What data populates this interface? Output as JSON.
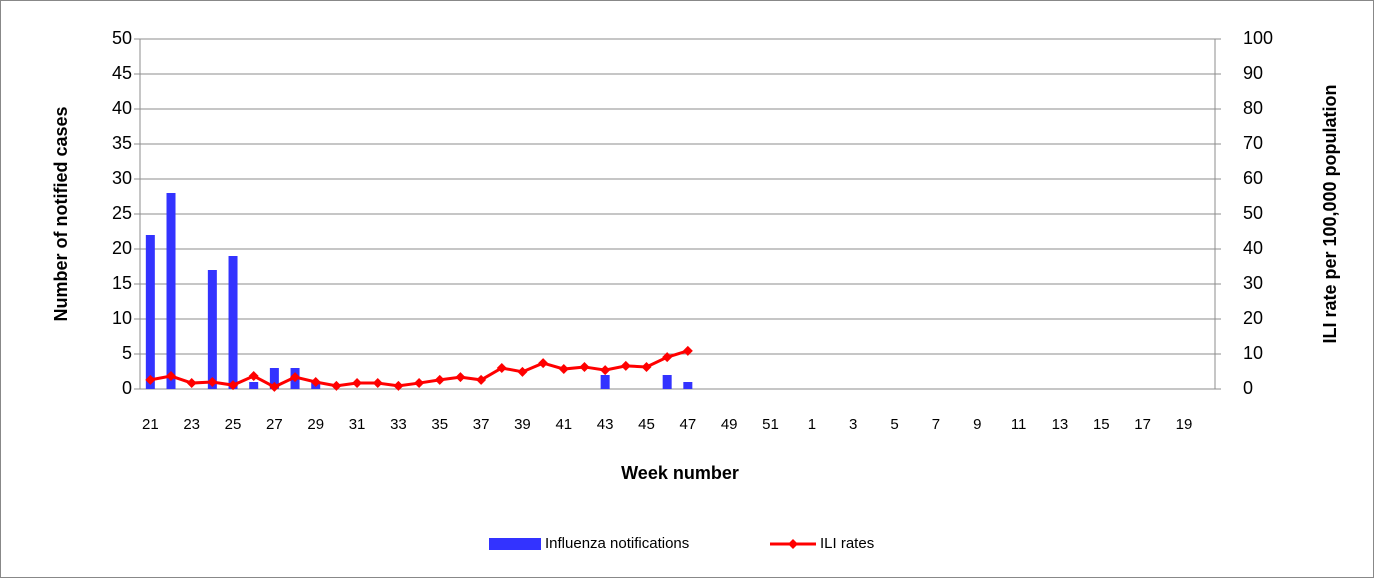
{
  "chart_data": {
    "type": "bar-line",
    "x_label": "Week number",
    "y_label": "Number of notified cases",
    "y2_label": "ILI rate per 100,000 population",
    "categories": [
      "21",
      null,
      "23",
      null,
      "25",
      null,
      "27",
      null,
      "29",
      null,
      "31",
      null,
      "33",
      null,
      "35",
      null,
      "37",
      null,
      "39",
      null,
      "41",
      null,
      "43",
      null,
      "45",
      null,
      "47",
      null,
      "49",
      null,
      "51",
      null,
      "1",
      null,
      "3",
      null,
      "5",
      null,
      "7",
      null,
      "9",
      null,
      "11",
      null,
      "13",
      null,
      "15",
      null,
      "17",
      null,
      "19",
      null
    ],
    "series": [
      {
        "name": "Influenza notifications",
        "type": "bar",
        "color": "#3333ff",
        "values": [
          22,
          28,
          0,
          17,
          19,
          1,
          3,
          3,
          1,
          0,
          0,
          0,
          0,
          0,
          0,
          0,
          0,
          0,
          0,
          0,
          0,
          0,
          2,
          0,
          0,
          2,
          1,
          null,
          null,
          null,
          null,
          null,
          null,
          null,
          null,
          null,
          null,
          null,
          null,
          null,
          null,
          null,
          null,
          null,
          null,
          null,
          null,
          null,
          null,
          null,
          null,
          null
        ]
      },
      {
        "name": "ILI rates",
        "type": "line",
        "axis": "y2",
        "color": "#ff0000",
        "values": [
          2.6,
          3.7,
          1.7,
          2,
          1.1,
          3.7,
          0.6,
          3.4,
          2,
          0.9,
          1.7,
          1.7,
          0.9,
          1.7,
          2.6,
          3.4,
          2.6,
          6,
          4.9,
          7.4,
          5.7,
          6.3,
          5.4,
          6.6,
          6.3,
          9.1,
          10.9,
          null,
          null,
          null,
          null,
          null,
          null,
          null,
          null,
          null,
          null,
          null,
          null,
          null,
          null,
          null,
          null,
          null,
          null,
          null,
          null,
          null,
          null,
          null,
          null,
          null
        ]
      }
    ],
    "ylim": [
      0,
      50
    ],
    "yticks": [
      0,
      5,
      10,
      15,
      20,
      25,
      30,
      35,
      40,
      45,
      50
    ],
    "y2lim": [
      0,
      100
    ],
    "y2ticks": [
      0,
      10,
      20,
      30,
      40,
      50,
      60,
      70,
      80,
      90,
      100
    ],
    "grid": true,
    "legend": "bottom"
  }
}
